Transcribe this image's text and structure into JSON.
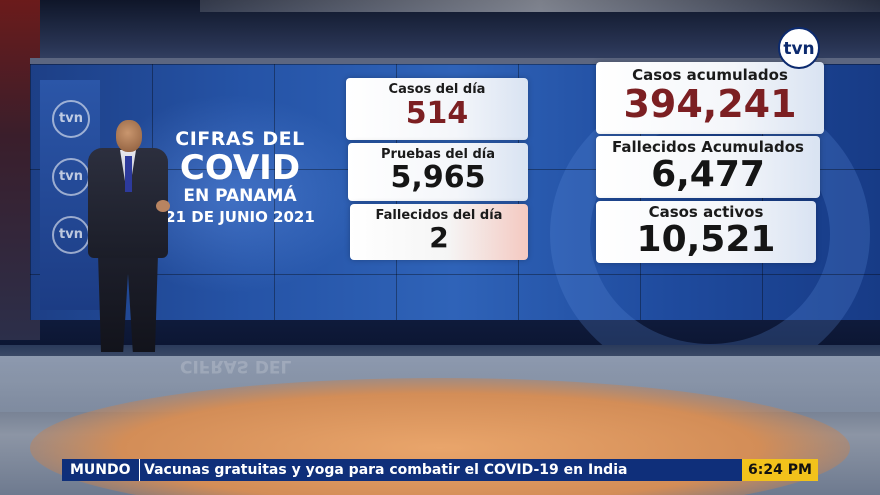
{
  "channel_logo": "tvn",
  "side_logos": [
    "tvn",
    "tvn",
    "tvn"
  ],
  "title": {
    "line1": "CIFRAS DEL",
    "line2": "COVID",
    "line3": "EN PANAMÁ",
    "line4": "21 DE JUNIO 2021"
  },
  "stats_left": [
    {
      "label": "Casos del día",
      "value": "514"
    },
    {
      "label": "Pruebas del día",
      "value": "5,965"
    },
    {
      "label": "Fallecidos del día",
      "value": "2"
    }
  ],
  "stats_right": [
    {
      "label": "Casos acumulados",
      "value": "394,241"
    },
    {
      "label": "Fallecidos Acumulados",
      "value": "6,477"
    },
    {
      "label": "Casos activos",
      "value": "10,521"
    }
  ],
  "ticker": {
    "tag": "MUNDO",
    "headline": "Vacunas gratuitas y yoga para combatir el COVID-19 en India",
    "time": "6:24 PM"
  },
  "colors": {
    "wall": "#2553a6",
    "ticker_bg": "#0f2f7a",
    "time_bg": "#f2c21b",
    "highlight_value": "#7c1f22"
  }
}
